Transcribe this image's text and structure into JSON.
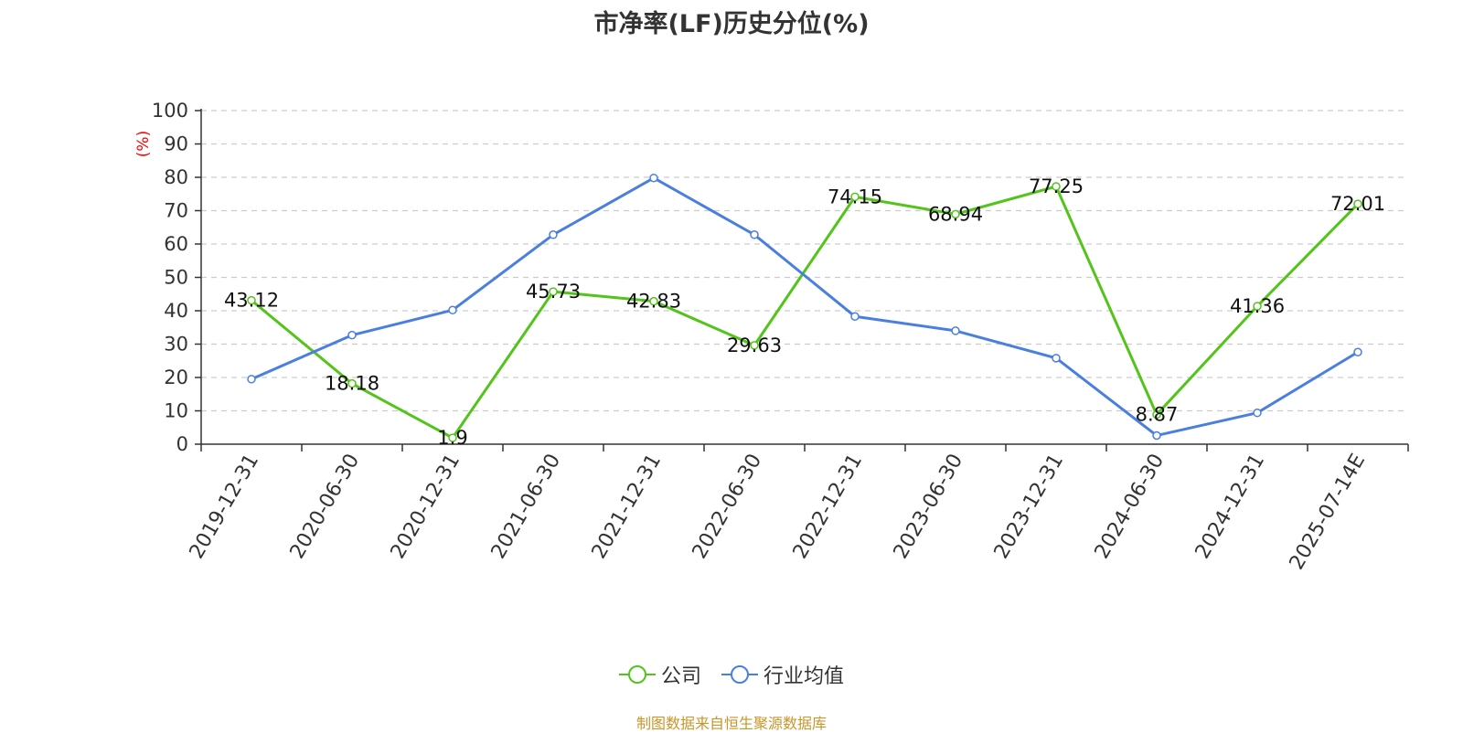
{
  "chart_data": {
    "type": "line",
    "title": "市净率(LF)历史分位(%)",
    "ylabel": "(%)",
    "ylim": [
      0,
      100
    ],
    "yticks": [
      0,
      10,
      20,
      30,
      40,
      50,
      60,
      70,
      80,
      90,
      100
    ],
    "grid": true,
    "legend_position": "bottom",
    "categories": [
      "2019-12-31",
      "2020-06-30",
      "2020-12-31",
      "2021-06-30",
      "2021-12-31",
      "2022-06-30",
      "2022-12-31",
      "2023-06-30",
      "2023-12-31",
      "2024-06-30",
      "2024-12-31",
      "2025-07-14E"
    ],
    "series": [
      {
        "name": "公司",
        "color": "#52c41a",
        "show_labels": true,
        "values": [
          43.12,
          18.18,
          1.9,
          45.73,
          42.83,
          29.63,
          74.15,
          68.94,
          77.25,
          8.87,
          41.36,
          72.01
        ],
        "labels": [
          "43.12",
          "18.18",
          "1.9",
          "45.73",
          "42.83",
          "29.63",
          "74.15",
          "68.94",
          "77.25",
          "8.87",
          "41.36",
          "72.01"
        ]
      },
      {
        "name": "行业均值",
        "color": "#4a7fe0",
        "show_labels": false,
        "values": [
          19.5,
          32.7,
          40.2,
          62.8,
          79.8,
          62.8,
          38.3,
          34.0,
          25.8,
          2.6,
          9.4,
          27.6
        ]
      }
    ],
    "source": "制图数据来自恒生聚源数据库",
    "colors": {
      "axis_label": "#ff0000",
      "source": "#c8962a",
      "grid": "#cccccc",
      "axis": "#333333"
    }
  }
}
